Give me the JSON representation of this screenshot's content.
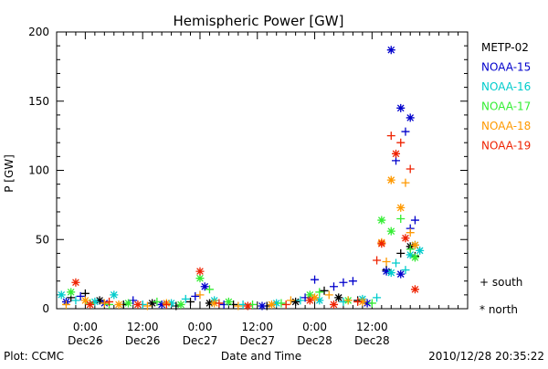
{
  "chart_data": {
    "type": "scatter",
    "title": "Hemispheric Power [GW]",
    "xlabel": "Date and Time",
    "ylabel": "P [GW]",
    "x_unit": "hours",
    "x_origin": "2010-12-26 00:00",
    "xlim": [
      -6,
      80
    ],
    "ylim": [
      0,
      200
    ],
    "yticks": [
      0,
      50,
      100,
      150,
      200
    ],
    "y_minor_step": 10,
    "xticks": [
      {
        "x": 0,
        "time": "0:00",
        "date": "Dec26"
      },
      {
        "x": 12,
        "time": "12:00",
        "date": "Dec26"
      },
      {
        "x": 24,
        "time": "0:00",
        "date": "Dec27"
      },
      {
        "x": 36,
        "time": "12:00",
        "date": "Dec27"
      },
      {
        "x": 48,
        "time": "0:00",
        "date": "Dec28"
      },
      {
        "x": 60,
        "time": "12:00",
        "date": "Dec28"
      }
    ],
    "x_minor_step": 2,
    "grid": false,
    "legend_position": "right",
    "marker_legend": [
      {
        "label": "+ south",
        "marker": "plus"
      },
      {
        "label": "* north",
        "marker": "star"
      }
    ],
    "series": [
      {
        "name": "METP-02",
        "color": "#000000",
        "points": [
          [
            -3,
            8,
            "plus"
          ],
          [
            0,
            11,
            "plus"
          ],
          [
            3,
            6,
            "star"
          ],
          [
            8,
            3,
            "plus"
          ],
          [
            14,
            4,
            "star"
          ],
          [
            19,
            2,
            "plus"
          ],
          [
            22,
            5,
            "plus"
          ],
          [
            26,
            4,
            "star"
          ],
          [
            31,
            3,
            "plus"
          ],
          [
            38,
            2,
            "plus"
          ],
          [
            44,
            5,
            "star"
          ],
          [
            50,
            13,
            "plus"
          ],
          [
            53,
            8,
            "star"
          ],
          [
            57,
            6,
            "plus"
          ],
          [
            63,
            28,
            "plus"
          ],
          [
            66,
            40,
            "plus"
          ],
          [
            68,
            45,
            "star"
          ],
          [
            69,
            38,
            "plus"
          ]
        ]
      },
      {
        "name": "NOAA-15",
        "color": "#0000cc",
        "points": [
          [
            -4,
            5,
            "star"
          ],
          [
            -1,
            9,
            "plus"
          ],
          [
            4,
            4,
            "star"
          ],
          [
            10,
            6,
            "plus"
          ],
          [
            16,
            3,
            "star"
          ],
          [
            23,
            9,
            "plus"
          ],
          [
            25,
            16,
            "star"
          ],
          [
            29,
            3,
            "plus"
          ],
          [
            37,
            2,
            "star"
          ],
          [
            46,
            8,
            "plus"
          ],
          [
            48,
            21,
            "plus"
          ],
          [
            52,
            16,
            "plus"
          ],
          [
            54,
            19,
            "plus"
          ],
          [
            56,
            20,
            "plus"
          ],
          [
            59,
            4,
            "star"
          ],
          [
            63,
            27,
            "star"
          ],
          [
            64,
            187,
            "star"
          ],
          [
            65,
            107,
            "plus"
          ],
          [
            66,
            145,
            "star"
          ],
          [
            67,
            128,
            "plus"
          ],
          [
            68,
            138,
            "star"
          ],
          [
            68,
            58,
            "plus"
          ],
          [
            69,
            64,
            "plus"
          ],
          [
            66,
            25,
            "star"
          ]
        ]
      },
      {
        "name": "NOAA-16",
        "color": "#00cccc",
        "points": [
          [
            -5,
            10,
            "star"
          ],
          [
            -2,
            6,
            "plus"
          ],
          [
            2,
            5,
            "star"
          ],
          [
            6,
            10,
            "star"
          ],
          [
            12,
            3,
            "plus"
          ],
          [
            18,
            4,
            "star"
          ],
          [
            21,
            7,
            "plus"
          ],
          [
            27,
            6,
            "star"
          ],
          [
            33,
            3,
            "plus"
          ],
          [
            40,
            4,
            "star"
          ],
          [
            45,
            6,
            "plus"
          ],
          [
            49,
            6,
            "star"
          ],
          [
            54,
            5,
            "plus"
          ],
          [
            58,
            7,
            "star"
          ],
          [
            61,
            8,
            "plus"
          ],
          [
            64,
            26,
            "star"
          ],
          [
            65,
            33,
            "plus"
          ],
          [
            67,
            28,
            "plus"
          ],
          [
            69,
            46,
            "star"
          ],
          [
            70,
            42,
            "star"
          ],
          [
            68,
            39,
            "star"
          ]
        ]
      },
      {
        "name": "NOAA-17",
        "color": "#33ee33",
        "points": [
          [
            -3,
            12,
            "star"
          ],
          [
            1,
            4,
            "plus"
          ],
          [
            5,
            3,
            "plus"
          ],
          [
            9,
            4,
            "star"
          ],
          [
            15,
            5,
            "plus"
          ],
          [
            20,
            3,
            "star"
          ],
          [
            24,
            22,
            "star"
          ],
          [
            26,
            14,
            "plus"
          ],
          [
            30,
            5,
            "star"
          ],
          [
            35,
            3,
            "plus"
          ],
          [
            41,
            4,
            "plus"
          ],
          [
            47,
            10,
            "star"
          ],
          [
            49,
            12,
            "plus"
          ],
          [
            55,
            6,
            "star"
          ],
          [
            60,
            4,
            "plus"
          ],
          [
            62,
            64,
            "star"
          ],
          [
            64,
            56,
            "star"
          ],
          [
            66,
            65,
            "plus"
          ],
          [
            68,
            43,
            "plus"
          ],
          [
            69,
            37,
            "star"
          ]
        ]
      },
      {
        "name": "NOAA-18",
        "color": "#ff9900",
        "points": [
          [
            -4,
            3,
            "plus"
          ],
          [
            0,
            6,
            "star"
          ],
          [
            4,
            4,
            "plus"
          ],
          [
            7,
            3,
            "star"
          ],
          [
            13,
            2,
            "plus"
          ],
          [
            17,
            4,
            "star"
          ],
          [
            24,
            10,
            "plus"
          ],
          [
            27,
            4,
            "star"
          ],
          [
            32,
            2,
            "plus"
          ],
          [
            39,
            3,
            "star"
          ],
          [
            43,
            6,
            "plus"
          ],
          [
            48,
            8,
            "star"
          ],
          [
            51,
            10,
            "plus"
          ],
          [
            55,
            6,
            "plus"
          ],
          [
            58,
            5,
            "star"
          ],
          [
            62,
            48,
            "star"
          ],
          [
            63,
            34,
            "plus"
          ],
          [
            64,
            93,
            "star"
          ],
          [
            66,
            73,
            "star"
          ],
          [
            67,
            91,
            "plus"
          ],
          [
            68,
            55,
            "plus"
          ],
          [
            69,
            46,
            "star"
          ]
        ]
      },
      {
        "name": "NOAA-19",
        "color": "#ee2200",
        "points": [
          [
            -2,
            19,
            "star"
          ],
          [
            1,
            3,
            "star"
          ],
          [
            5,
            5,
            "plus"
          ],
          [
            11,
            3,
            "star"
          ],
          [
            17,
            3,
            "plus"
          ],
          [
            24,
            27,
            "star"
          ],
          [
            28,
            4,
            "plus"
          ],
          [
            34,
            2,
            "star"
          ],
          [
            42,
            3,
            "plus"
          ],
          [
            47,
            6,
            "star"
          ],
          [
            52,
            3,
            "star"
          ],
          [
            57,
            5,
            "plus"
          ],
          [
            61,
            35,
            "plus"
          ],
          [
            62,
            47,
            "star"
          ],
          [
            64,
            125,
            "plus"
          ],
          [
            65,
            112,
            "star"
          ],
          [
            66,
            120,
            "plus"
          ],
          [
            67,
            51,
            "star"
          ],
          [
            68,
            101,
            "plus"
          ],
          [
            69,
            14,
            "star"
          ]
        ]
      }
    ]
  },
  "footer": {
    "left": "Plot: CCMC",
    "right": "2010/12/28 20:35:22"
  }
}
